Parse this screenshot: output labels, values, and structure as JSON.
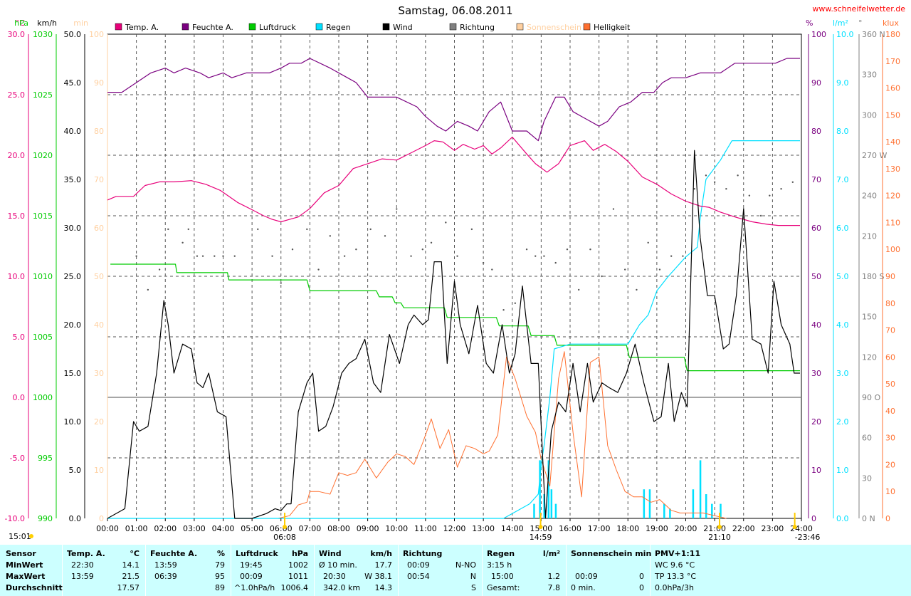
{
  "title": "Samstag, 06.08.2011",
  "site": "www.schneifelwetter.de",
  "colors": {
    "temp": "#e8007a",
    "humidity": "#7a0080",
    "pressure": "#00cc00",
    "rain": "#00e0ff",
    "wind": "#000000",
    "direction": "#808080",
    "sunshine": "#ffd0a0",
    "brightness": "#ff7030",
    "panel_bg": "#ccffff"
  },
  "chart_data": {
    "type": "line",
    "x_unit": "h",
    "x_ticks": [
      "00:00",
      "01:00",
      "02:00",
      "03:00",
      "04:00",
      "05:00",
      "06:00",
      "07:00",
      "08:00",
      "09:00",
      "10:00",
      "11:00",
      "12:00",
      "13:00",
      "14:00",
      "15:00",
      "16:00",
      "17:00",
      "18:00",
      "19:00",
      "20:00",
      "21:00",
      "22:00",
      "23:00",
      "24:00"
    ],
    "markers": [
      {
        "label": "06:08",
        "x": 6.13,
        "icon": "sunrise-icon"
      },
      {
        "label": "14:59",
        "x": 14.98,
        "icon": "moon-icon"
      },
      {
        "label": "21:10",
        "x": 21.17,
        "icon": "sunset-icon"
      },
      {
        "label": "-23:46",
        "x": 23.77,
        "icon": "moon-icon"
      }
    ],
    "current_time": "15:01",
    "axes": {
      "temp": {
        "unit": "°C",
        "min": -10,
        "max": 30,
        "ticks": [
          "30.0",
          "25.0",
          "20.0",
          "15.0",
          "10.0",
          "5.0",
          "0.0",
          "-5.0",
          "-10.0"
        ]
      },
      "pressure": {
        "unit": "hPa",
        "min": 990,
        "max": 1030,
        "ticks": [
          "1030",
          "1025",
          "1020",
          "1015",
          "1010",
          "1005",
          "1000",
          "995",
          "990"
        ]
      },
      "wind": {
        "unit": "km/h",
        "min": 0,
        "max": 50,
        "ticks": [
          "50.0",
          "45.0",
          "40.0",
          "35.0",
          "30.0",
          "25.0",
          "20.0",
          "15.0",
          "10.0",
          "5.0",
          "0.0"
        ]
      },
      "sunshine": {
        "unit": "min",
        "min": 0,
        "max": 100,
        "ticks": [
          "100",
          "90",
          "80",
          "70",
          "60",
          "50",
          "40",
          "30",
          "20",
          "10",
          "0"
        ]
      },
      "humidity": {
        "unit": "%",
        "min": 0,
        "max": 100,
        "ticks": [
          "100",
          "90",
          "80",
          "70",
          "60",
          "50",
          "40",
          "30",
          "20",
          "10",
          "0"
        ]
      },
      "rain": {
        "unit": "l/m²",
        "min": 0,
        "max": 10,
        "ticks": [
          "10.0",
          "9.0",
          "8.0",
          "7.0",
          "6.0",
          "5.0",
          "4.0",
          "3.0",
          "2.0",
          "1.0",
          "0.0"
        ]
      },
      "direction": {
        "unit": "°",
        "min": 0,
        "max": 360,
        "ticks": [
          "360 N",
          "330",
          "300",
          "270 W",
          "240",
          "210",
          "180 S",
          "150",
          "120",
          "90 O",
          "60",
          "30",
          "0 N"
        ]
      },
      "brightness": {
        "unit": "klux",
        "min": 0,
        "max": 180,
        "ticks": [
          "180",
          "170",
          "160",
          "150",
          "140",
          "130",
          "120",
          "110",
          "100",
          "90",
          "80",
          "70",
          "60",
          "50",
          "40",
          "30",
          "20",
          "10",
          "0"
        ]
      }
    },
    "legend": [
      {
        "name": "Temp. A.",
        "key": "temp"
      },
      {
        "name": "Feuchte A.",
        "key": "humidity"
      },
      {
        "name": "Luftdruck",
        "key": "pressure"
      },
      {
        "name": "Regen",
        "key": "rain"
      },
      {
        "name": "Wind",
        "key": "wind"
      },
      {
        "name": "Richtung",
        "key": "direction"
      },
      {
        "name": "Sonnenschein",
        "key": "sunshine"
      },
      {
        "name": "Helligkeit",
        "key": "brightness"
      }
    ],
    "series": {
      "humidity": {
        "x": [
          0,
          0.5,
          1,
          1.5,
          2,
          2.3,
          2.7,
          3.2,
          3.5,
          4,
          4.3,
          4.8,
          5.2,
          5.6,
          6,
          6.3,
          6.7,
          7,
          7.7,
          8.3,
          8.6,
          9,
          9.5,
          10,
          10.7,
          11,
          11.4,
          11.7,
          12.1,
          12.5,
          12.8,
          13.2,
          13.6,
          14,
          14.5,
          14.9,
          15.1,
          15.5,
          15.8,
          16.1,
          16.4,
          16.7,
          17,
          17.3,
          17.7,
          18.1,
          18.5,
          18.9,
          19.2,
          19.5,
          20,
          20.5,
          20.9,
          21.2,
          21.7,
          22.3,
          22.8,
          23.1,
          23.5,
          23.95
        ],
        "y": [
          88,
          88,
          90,
          92,
          93,
          92,
          93,
          92,
          91,
          92,
          91,
          92,
          92,
          92,
          93,
          94,
          94,
          95,
          93,
          91,
          90,
          87,
          87,
          87,
          85,
          83,
          81,
          80,
          82,
          81,
          80,
          84,
          86,
          80,
          80,
          78,
          82,
          87,
          87,
          84,
          83,
          82,
          81,
          82,
          85,
          86,
          88,
          88,
          90,
          91,
          91,
          92,
          92,
          92,
          94,
          94,
          94,
          94,
          95,
          95
        ]
      },
      "temp": {
        "x": [
          0,
          0.3,
          0.9,
          1.3,
          1.8,
          2.3,
          2.9,
          3.4,
          3.9,
          4.5,
          5,
          5.4,
          5.7,
          6,
          6.3,
          6.6,
          7,
          7.5,
          8,
          8.5,
          9,
          9.5,
          10,
          10.5,
          11,
          11.3,
          11.6,
          12,
          12.3,
          12.7,
          13,
          13.3,
          13.6,
          14,
          14.5,
          14.8,
          15.2,
          15.6,
          16,
          16.5,
          16.8,
          17.2,
          17.6,
          18,
          18.5,
          19,
          19.5,
          20,
          20.5,
          20.8,
          21.2,
          21.7,
          22.3,
          22.8,
          23.2,
          23.6,
          23.95
        ],
        "y": [
          16.3,
          16.6,
          16.6,
          17.5,
          17.8,
          17.8,
          17.9,
          17.6,
          17.1,
          16.1,
          15.5,
          15,
          14.7,
          14.5,
          14.7,
          14.9,
          15.6,
          16.9,
          17.5,
          18.9,
          19.3,
          19.7,
          19.6,
          20.2,
          20.8,
          21.2,
          21.1,
          20.4,
          20.9,
          20.5,
          20.8,
          20.1,
          20.6,
          21.5,
          20.1,
          19.3,
          18.6,
          19.3,
          20.8,
          21.2,
          20.4,
          20.9,
          20.3,
          19.5,
          18.2,
          17.6,
          16.8,
          16.2,
          15.8,
          15.7,
          15.3,
          14.9,
          14.5,
          14.3,
          14.2,
          14.2,
          14.2
        ]
      },
      "pressure": {
        "x": [
          0.1,
          2.35,
          2.4,
          4.15,
          4.2,
          6.9,
          7,
          9.3,
          9.4,
          9.85,
          9.95,
          10.15,
          10.25,
          11.65,
          11.75,
          13.45,
          13.55,
          14.55,
          14.65,
          15.45,
          15.55,
          17.95,
          18.05,
          19.95,
          20.05,
          23.95
        ],
        "y": [
          1011,
          1011,
          1010.3,
          1010.3,
          1009.7,
          1009.7,
          1008.8,
          1008.8,
          1008.3,
          1008.3,
          1007.8,
          1007.8,
          1007.4,
          1007.4,
          1006.6,
          1006.6,
          1005.9,
          1005.9,
          1005.1,
          1005.1,
          1004.3,
          1004.3,
          1003.3,
          1003.3,
          1002.2,
          1002.2
        ]
      },
      "rain": {
        "x": [
          0,
          13.7,
          14.6,
          14.9,
          15,
          15.1,
          15.3,
          15.45,
          16,
          17.9,
          18,
          18.4,
          18.7,
          19,
          19.4,
          20,
          20.4,
          20.5,
          20.7,
          21.2,
          21.4,
          21.6,
          21.8,
          22.3,
          22.9,
          23.95
        ],
        "y": [
          0,
          0,
          0.3,
          0.5,
          1.1,
          1.5,
          2.5,
          3.5,
          3.6,
          3.6,
          3.6,
          4,
          4.2,
          4.7,
          5,
          5.4,
          5.6,
          6.2,
          7,
          7.4,
          7.6,
          7.8,
          7.8,
          7.8,
          7.8,
          7.8
        ]
      },
      "rain_bars": {
        "x": [
          14.75,
          14.95,
          15.1,
          15.25,
          15.35,
          15.5,
          18.55,
          18.75,
          19.25,
          19.45,
          20.25,
          20.5,
          20.7,
          20.9,
          21.2
        ],
        "y": [
          0.3,
          1.2,
          0.5,
          1.2,
          0.6,
          0.3,
          0.6,
          0.6,
          0.3,
          0.2,
          0.6,
          1.2,
          0.5,
          0.3,
          0.3
        ]
      },
      "brightness": {
        "x": [
          5.9,
          6.3,
          6.6,
          6.9,
          7,
          7.3,
          7.7,
          8,
          8.3,
          8.6,
          8.9,
          9.3,
          9.7,
          10,
          10.3,
          10.6,
          10.9,
          11.2,
          11.5,
          11.8,
          12.1,
          12.4,
          12.7,
          13,
          13.2,
          13.5,
          13.8,
          14.1,
          14.5,
          14.8,
          15,
          15.3,
          15.6,
          15.8,
          16.1,
          16.4,
          16.7,
          17,
          17.3,
          17.6,
          17.9,
          18.2,
          18.5,
          18.8,
          19.1,
          19.5,
          19.8,
          20.2,
          20.6,
          21,
          21.4
        ],
        "y": [
          0,
          1,
          5,
          6,
          10,
          10,
          9,
          17,
          16,
          17,
          22,
          15,
          21,
          24,
          23,
          20,
          28,
          37,
          26,
          33,
          19,
          27,
          26,
          24,
          25,
          31,
          60,
          52,
          38,
          32,
          22,
          12,
          52,
          62,
          32,
          8,
          58,
          60,
          27,
          18,
          10,
          8,
          8,
          6,
          7,
          3,
          2,
          2,
          2,
          1,
          0
        ]
      },
      "wind": {
        "x": [
          0,
          0.6,
          0.9,
          1.1,
          1.4,
          1.7,
          1.95,
          2.1,
          2.3,
          2.6,
          2.9,
          3.1,
          3.3,
          3.5,
          3.8,
          4.1,
          4.4,
          4.6,
          4.8,
          5.0,
          5.5,
          5.8,
          6.0,
          6.2,
          6.35,
          6.6,
          6.9,
          7.1,
          7.3,
          7.55,
          7.8,
          8.1,
          8.35,
          8.6,
          8.9,
          9.2,
          9.45,
          9.75,
          10.1,
          10.4,
          10.6,
          10.9,
          11.1,
          11.3,
          11.55,
          11.75,
          12,
          12.2,
          12.5,
          12.8,
          13.1,
          13.35,
          13.65,
          13.9,
          14.1,
          14.35,
          14.65,
          14.9,
          15.15,
          15.35,
          15.6,
          15.85,
          16.1,
          16.35,
          16.6,
          16.8,
          17.1,
          17.35,
          17.65,
          17.95,
          18.25,
          18.55,
          18.9,
          19.15,
          19.4,
          19.6,
          19.85,
          20.05,
          20.3,
          20.5,
          20.75,
          21.0,
          21.3,
          21.5,
          21.75,
          22,
          22.3,
          22.6,
          22.85,
          23.05,
          23.3,
          23.6,
          23.75,
          23.95
        ],
        "y": [
          0,
          1,
          10,
          9,
          9.5,
          15,
          22.5,
          20,
          15,
          18,
          17.5,
          14,
          13.5,
          15,
          11,
          10.5,
          0,
          0,
          0,
          0,
          0.5,
          1,
          0.8,
          1.5,
          1.5,
          11,
          14,
          15,
          9,
          9.5,
          11.5,
          15,
          16,
          16.5,
          18.5,
          14,
          13,
          19,
          16,
          20,
          21,
          20,
          20.5,
          26.5,
          26.5,
          16,
          24.5,
          20,
          17,
          22,
          16,
          15,
          20,
          15,
          17,
          24,
          16,
          16,
          0,
          9,
          12,
          11,
          16,
          11,
          16,
          12,
          14,
          13.5,
          13,
          15,
          18,
          14,
          10,
          10.5,
          16,
          10,
          13,
          11.5,
          38,
          29,
          23,
          23,
          17.5,
          18,
          23,
          32,
          18.5,
          18,
          15,
          24.5,
          20,
          18,
          15,
          15
        ]
      },
      "direction": {
        "x": [
          1,
          1.4,
          1.8,
          2.1,
          2.6,
          2.8,
          3.1,
          3.3,
          3.7,
          4,
          4.4,
          5.2,
          5.7,
          6,
          6.4,
          6.9,
          7.3,
          7.7,
          8.2,
          8.6,
          9.1,
          9.6,
          10,
          10.5,
          10.9,
          11.2,
          11.7,
          12.1,
          12.6,
          13,
          13.3,
          13.7,
          14.1,
          14.5,
          14.8,
          15.1,
          15.5,
          15.9,
          16.3,
          16.7,
          17.1,
          17.5,
          17.9,
          18.3,
          18.7,
          19.1,
          19.5,
          19.9,
          20.3,
          20.7,
          21,
          21.4,
          21.8,
          22.2,
          22.6,
          22.9,
          23.3,
          23.7
        ],
        "y": [
          195,
          170,
          185,
          215,
          205,
          215,
          195,
          195,
          195,
          195,
          195,
          215,
          195,
          175,
          200,
          215,
          185,
          210,
          195,
          200,
          215,
          210,
          230,
          195,
          200,
          205,
          220,
          195,
          215,
          190,
          185,
          155,
          160,
          200,
          195,
          195,
          190,
          200,
          170,
          200,
          180,
          230,
          185,
          170,
          205,
          185,
          195,
          195,
          245,
          255,
          250,
          245,
          255,
          240,
          225,
          240,
          245,
          250
        ]
      }
    }
  },
  "stats": {
    "sensor": {
      "header": "Sensor",
      "rows": [
        "MinWert",
        "MaxWert",
        "Durchschnitt"
      ]
    },
    "temp": {
      "header": "Temp. A.",
      "unit": "°C",
      "rows": [
        [
          "22:30",
          "14.1"
        ],
        [
          "13:59",
          "21.5"
        ],
        [
          "",
          "17.57"
        ]
      ]
    },
    "humidity": {
      "header": "Feuchte A.",
      "unit": "%",
      "rows": [
        [
          "13:59",
          "79"
        ],
        [
          "06:39",
          "95"
        ],
        [
          "",
          "89"
        ]
      ]
    },
    "pressure": {
      "header": "Luftdruck",
      "unit": "hPa",
      "rows": [
        [
          "19:45",
          "1002"
        ],
        [
          "00:09",
          "1011"
        ],
        [
          "^1.0hPa/h",
          "1006.4"
        ]
      ]
    },
    "wind": {
      "header": "Wind",
      "unit": "km/h",
      "rows": [
        [
          "Ø 10 min.",
          "17.7"
        ],
        [
          "20:30",
          "W 38.1"
        ],
        [
          "342.0 km",
          "14.3"
        ]
      ]
    },
    "direction": {
      "header": "Richtung",
      "unit": "",
      "rows": [
        [
          "00:09",
          "N-NO"
        ],
        [
          "00:54",
          "N"
        ],
        [
          "",
          "S"
        ]
      ]
    },
    "rain": {
      "header": "Regen",
      "unit": "l/m²",
      "rows": [
        [
          "3:15 h",
          ""
        ],
        [
          "15:00",
          "1.2"
        ],
        [
          "Gesamt:",
          "7.8"
        ]
      ]
    },
    "sunshine": {
      "header": "Sonnenschein min",
      "unit": "",
      "rows": [
        [
          "",
          ""
        ],
        [
          "00:09",
          "0"
        ],
        [
          "0 min.",
          "0"
        ]
      ]
    },
    "pmv": {
      "header": "PMV+1:11",
      "rows": [
        "WC 9.6 °C",
        "TP 13.3 °C",
        "0.0hPa/3h"
      ]
    }
  }
}
